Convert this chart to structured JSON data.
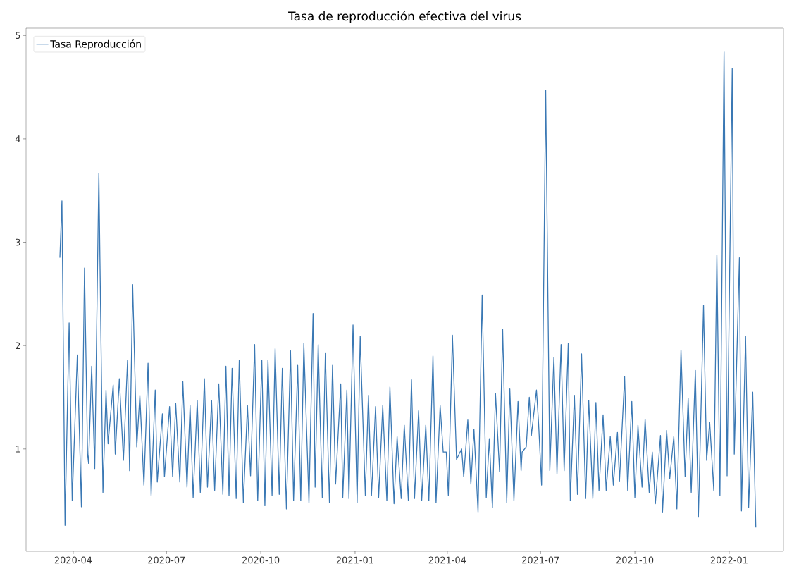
{
  "chart_data": {
    "type": "line",
    "title": "Tasa de reproducción efectiva del virus",
    "x": [
      "2020-03-19",
      "2020-03-21",
      "2020-03-24",
      "2020-03-28",
      "2020-03-31",
      "2020-04-05",
      "2020-04-09",
      "2020-04-12",
      "2020-04-15",
      "2020-04-16",
      "2020-04-19",
      "2020-04-22",
      "2020-04-26",
      "2020-04-30",
      "2020-05-03",
      "2020-05-05",
      "2020-05-10",
      "2020-05-11",
      "2020-05-12",
      "2020-05-16",
      "2020-05-20",
      "2020-05-24",
      "2020-05-26",
      "2020-05-29",
      "2020-06-02",
      "2020-06-05",
      "2020-06-09",
      "2020-06-13",
      "2020-06-16",
      "2020-06-20",
      "2020-06-22",
      "2020-06-27",
      "2020-06-29",
      "2020-07-04",
      "2020-07-07",
      "2020-07-10",
      "2020-07-14",
      "2020-07-17",
      "2020-07-21",
      "2020-07-24",
      "2020-07-27",
      "2020-07-31",
      "2020-08-03",
      "2020-08-07",
      "2020-08-10",
      "2020-08-14",
      "2020-08-17",
      "2020-08-21",
      "2020-08-25",
      "2020-08-28",
      "2020-08-31",
      "2020-09-03",
      "2020-09-07",
      "2020-09-10",
      "2020-09-14",
      "2020-09-18",
      "2020-09-21",
      "2020-09-25",
      "2020-09-28",
      "2020-10-02",
      "2020-10-05",
      "2020-10-08",
      "2020-10-12",
      "2020-10-15",
      "2020-10-19",
      "2020-10-22",
      "2020-10-26",
      "2020-10-30",
      "2020-11-02",
      "2020-11-06",
      "2020-11-09",
      "2020-11-12",
      "2020-11-17",
      "2020-11-21",
      "2020-11-23",
      "2020-11-26",
      "2020-11-30",
      "2020-12-03",
      "2020-12-07",
      "2020-12-10",
      "2020-12-13",
      "2020-12-18",
      "2020-12-20",
      "2020-12-24",
      "2020-12-26",
      "2020-12-30",
      "2021-01-03",
      "2021-01-06",
      "2021-01-11",
      "2021-01-14",
      "2021-01-17",
      "2021-01-21",
      "2021-01-24",
      "2021-01-28",
      "2021-02-01",
      "2021-02-04",
      "2021-02-08",
      "2021-02-11",
      "2021-02-15",
      "2021-02-18",
      "2021-02-22",
      "2021-02-25",
      "2021-02-28",
      "2021-03-04",
      "2021-03-07",
      "2021-03-11",
      "2021-03-14",
      "2021-03-18",
      "2021-03-21",
      "2021-03-25",
      "2021-03-28",
      "2021-03-31",
      "2021-04-02",
      "2021-04-06",
      "2021-04-10",
      "2021-04-15",
      "2021-04-17",
      "2021-04-21",
      "2021-04-24",
      "2021-04-27",
      "2021-05-01",
      "2021-05-05",
      "2021-05-09",
      "2021-05-12",
      "2021-05-15",
      "2021-05-18",
      "2021-05-22",
      "2021-05-25",
      "2021-05-29",
      "2021-06-01",
      "2021-06-05",
      "2021-06-09",
      "2021-06-12",
      "2021-06-13",
      "2021-06-17",
      "2021-06-20",
      "2021-06-22",
      "2021-06-27",
      "2021-06-29",
      "2021-07-02",
      "2021-07-06",
      "2021-07-10",
      "2021-07-14",
      "2021-07-17",
      "2021-07-21",
      "2021-07-24",
      "2021-07-28",
      "2021-07-30",
      "2021-08-03",
      "2021-08-06",
      "2021-08-10",
      "2021-08-14",
      "2021-08-17",
      "2021-08-21",
      "2021-08-24",
      "2021-08-27",
      "2021-08-31",
      "2021-09-03",
      "2021-09-07",
      "2021-09-10",
      "2021-09-14",
      "2021-09-16",
      "2021-09-21",
      "2021-09-24",
      "2021-09-28",
      "2021-10-01",
      "2021-10-04",
      "2021-10-08",
      "2021-10-11",
      "2021-10-15",
      "2021-10-18",
      "2021-10-21",
      "2021-10-26",
      "2021-10-28",
      "2021-11-01",
      "2021-11-04",
      "2021-11-08",
      "2021-11-11",
      "2021-11-15",
      "2021-11-19",
      "2021-11-22",
      "2021-11-25",
      "2021-11-29",
      "2021-12-02",
      "2021-12-07",
      "2021-12-10",
      "2021-12-13",
      "2021-12-17",
      "2021-12-20",
      "2021-12-23",
      "2021-12-27",
      "2021-12-30",
      "2022-01-04",
      "2022-01-06",
      "2022-01-11",
      "2022-01-13",
      "2022-01-17",
      "2022-01-20",
      "2022-01-24",
      "2022-01-27"
    ],
    "series": [
      {
        "name": "Tasa Reproducción",
        "color": "#3a78b4",
        "values": [
          2.85,
          3.4,
          0.26,
          2.22,
          0.5,
          1.91,
          0.44,
          2.75,
          0.95,
          0.86,
          1.8,
          0.81,
          3.67,
          0.58,
          1.57,
          1.05,
          1.62,
          1.31,
          0.95,
          1.68,
          0.89,
          1.86,
          0.79,
          2.59,
          1.02,
          1.52,
          0.65,
          1.83,
          0.55,
          1.57,
          0.68,
          1.34,
          0.73,
          1.41,
          0.73,
          1.44,
          0.68,
          1.65,
          0.63,
          1.42,
          0.53,
          1.47,
          0.58,
          1.68,
          0.63,
          1.47,
          0.6,
          1.63,
          0.56,
          1.8,
          0.55,
          1.78,
          0.52,
          1.86,
          0.48,
          1.42,
          0.74,
          2.01,
          0.5,
          1.86,
          0.45,
          1.86,
          0.55,
          1.97,
          0.56,
          1.78,
          0.42,
          1.95,
          0.5,
          1.81,
          0.5,
          2.02,
          0.48,
          2.31,
          0.63,
          2.01,
          0.53,
          1.93,
          0.48,
          1.81,
          0.66,
          1.63,
          0.53,
          1.57,
          0.52,
          2.2,
          0.48,
          2.09,
          0.55,
          1.52,
          0.55,
          1.41,
          0.53,
          1.42,
          0.5,
          1.6,
          0.47,
          1.12,
          0.52,
          1.23,
          0.5,
          1.67,
          0.52,
          1.37,
          0.5,
          1.23,
          0.5,
          1.9,
          0.48,
          1.42,
          0.97,
          0.97,
          0.55,
          2.1,
          0.9,
          1.0,
          0.73,
          1.28,
          0.66,
          1.19,
          0.39,
          2.49,
          0.53,
          1.1,
          0.43,
          1.54,
          0.78,
          2.16,
          0.48,
          1.58,
          0.5,
          1.46,
          0.79,
          0.97,
          1.02,
          1.5,
          1.13,
          1.57,
          1.26,
          0.65,
          4.47,
          0.79,
          1.89,
          0.76,
          2.01,
          0.79,
          2.02,
          0.5,
          1.52,
          0.56,
          1.92,
          0.52,
          1.47,
          0.52,
          1.45,
          0.6,
          1.33,
          0.6,
          1.12,
          0.65,
          1.16,
          0.69,
          1.7,
          0.6,
          1.46,
          0.53,
          1.23,
          0.63,
          1.29,
          0.58,
          0.97,
          0.47,
          1.13,
          0.39,
          1.18,
          0.71,
          1.12,
          0.42,
          1.96,
          0.73,
          1.49,
          0.58,
          1.76,
          0.34,
          2.39,
          0.89,
          1.26,
          0.6,
          2.88,
          0.55,
          4.84,
          0.74,
          4.68,
          0.95,
          2.85,
          0.4,
          2.09,
          0.43,
          1.55,
          0.24
        ]
      }
    ],
    "xlim": [
      "2020-02-15",
      "2022-02-23"
    ],
    "ylim": [
      0.01,
      5.07
    ],
    "xticks": [
      {
        "value": "2020-04-01",
        "label": "2020-04"
      },
      {
        "value": "2020-07-01",
        "label": "2020-07"
      },
      {
        "value": "2020-10-01",
        "label": "2020-10"
      },
      {
        "value": "2021-01-01",
        "label": "2021-01"
      },
      {
        "value": "2021-04-01",
        "label": "2021-04"
      },
      {
        "value": "2021-07-01",
        "label": "2021-07"
      },
      {
        "value": "2021-10-01",
        "label": "2021-10"
      },
      {
        "value": "2022-01-01",
        "label": "2022-01"
      }
    ],
    "yticks": [
      1,
      2,
      3,
      4,
      5
    ],
    "legend": "top left"
  }
}
